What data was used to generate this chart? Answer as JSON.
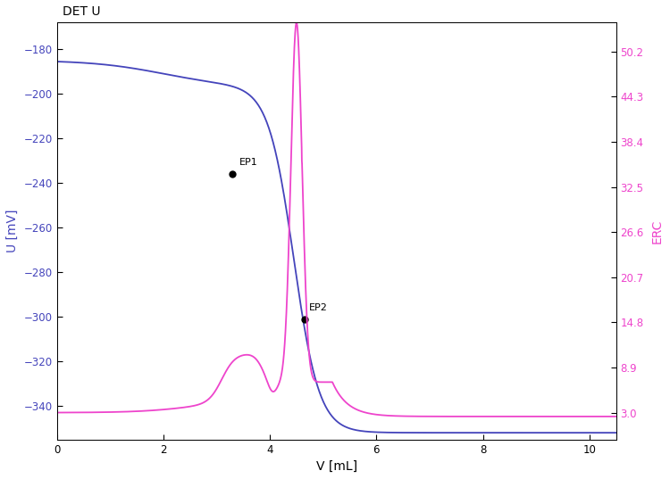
{
  "title": "DET U",
  "xlabel": "V [mL]",
  "ylabel_left": "U [mV]",
  "ylabel_right": "ERC",
  "xlim": [
    0,
    10.5
  ],
  "ylim_left": [
    -355,
    -168
  ],
  "ylim_right": [
    -0.5,
    54
  ],
  "yticks_left": [
    -340,
    -320,
    -300,
    -280,
    -260,
    -240,
    -220,
    -200,
    -180
  ],
  "yticks_right": [
    3.0,
    8.9,
    14.8,
    20.7,
    26.6,
    32.5,
    38.4,
    44.3,
    50.2
  ],
  "xticks": [
    0,
    2,
    4,
    6,
    8,
    10
  ],
  "ep1_x": 3.3,
  "ep1_y": -236,
  "ep2_x": 4.65,
  "ep2_y": -301,
  "blue_color": "#4444bb",
  "pink_color": "#ee44cc",
  "background_color": "#ffffff",
  "title_color": "#000000"
}
